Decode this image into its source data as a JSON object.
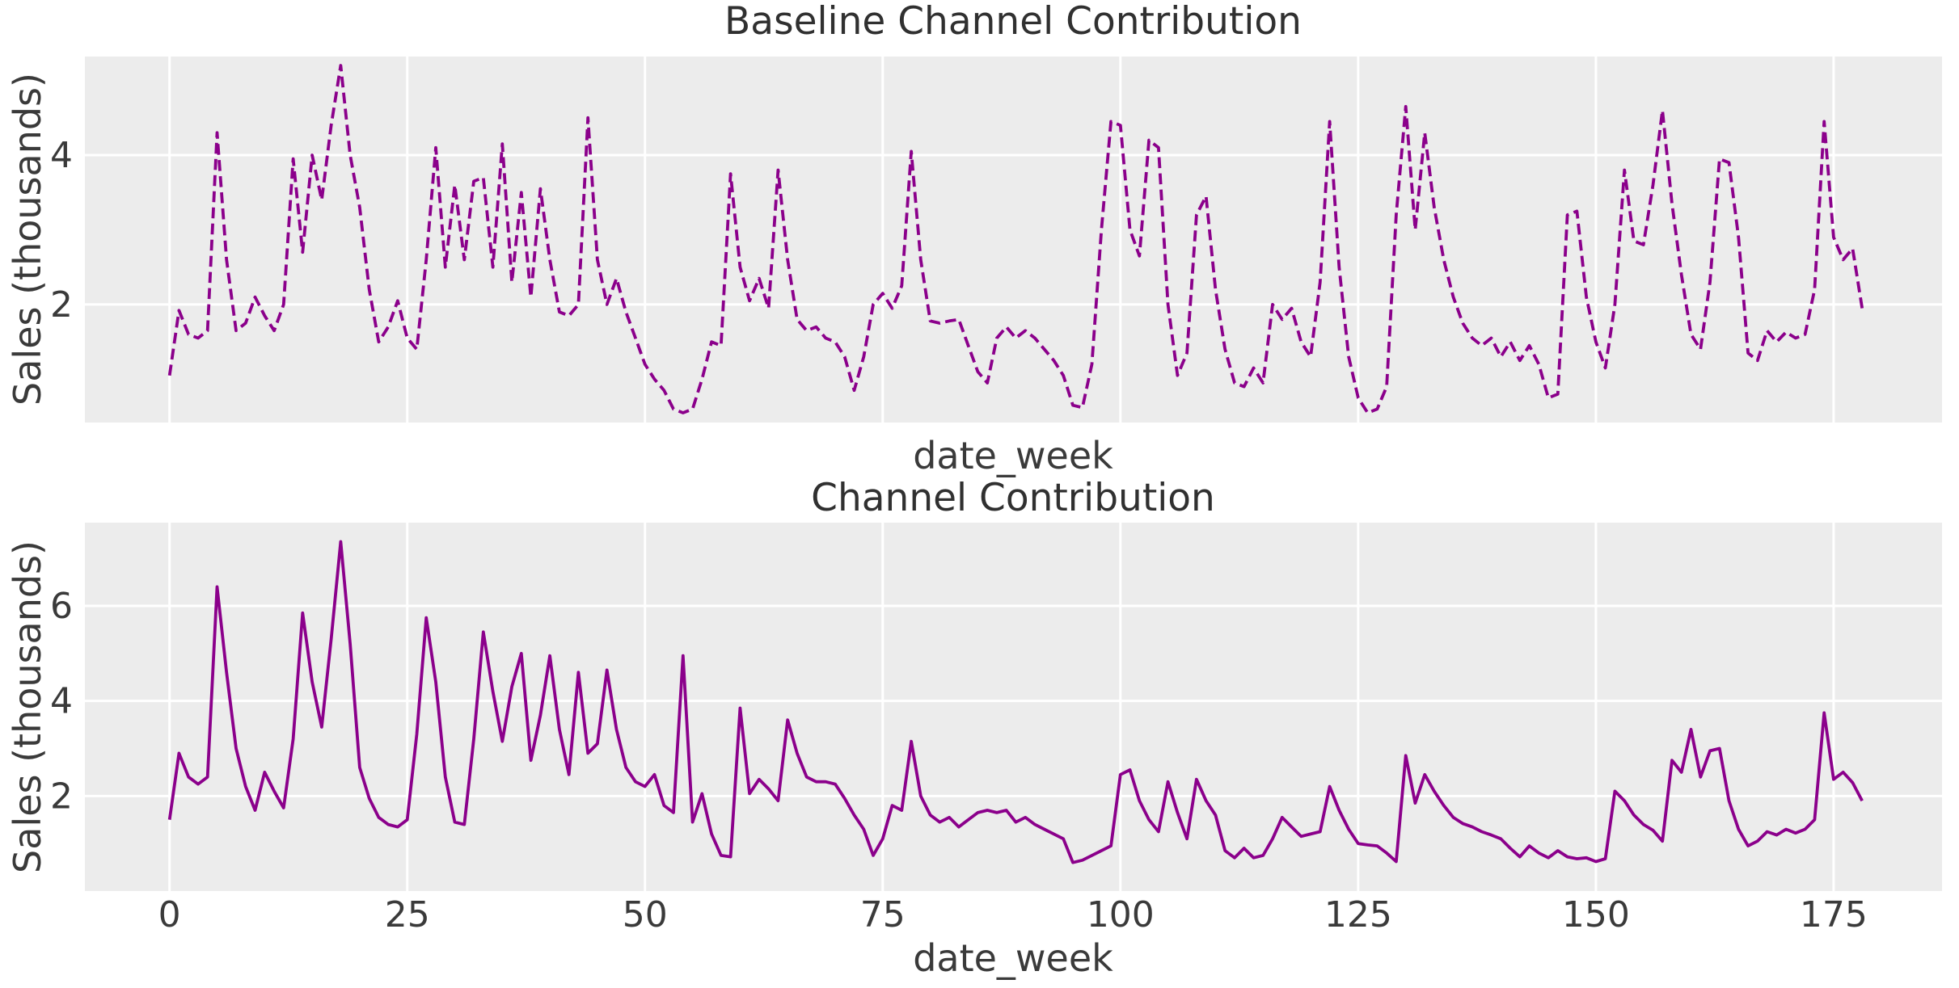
{
  "colors": {
    "line": "#8b008b",
    "plot_background": "#ececec",
    "grid": "#ffffff",
    "text": "#3a3a3a",
    "figure_background": "#ffffff"
  },
  "chart_data": [
    {
      "type": "line",
      "title": "Baseline Channel Contribution",
      "xlabel": "date_week",
      "ylabel": "Sales (thousands)",
      "line_style": "dashed",
      "line_color": "#8b008b",
      "grid": true,
      "legend_position": "none",
      "x_start_week": 0,
      "x_step": 1,
      "xlim": [
        -8.9,
        186.4
      ],
      "ylim": [
        0.42,
        5.32
      ],
      "yticks": [
        2,
        4
      ],
      "xticks": [
        0,
        25,
        50,
        75,
        100,
        125,
        150,
        175
      ],
      "show_xtick_labels": false,
      "values": [
        1.05,
        1.92,
        1.6,
        1.55,
        1.65,
        4.3,
        2.6,
        1.65,
        1.75,
        2.1,
        1.85,
        1.65,
        2.0,
        3.95,
        2.7,
        4.0,
        3.4,
        4.4,
        5.2,
        4.0,
        3.3,
        2.2,
        1.5,
        1.7,
        2.05,
        1.55,
        1.4,
        2.6,
        4.1,
        2.5,
        3.6,
        2.6,
        3.65,
        3.7,
        2.5,
        4.15,
        2.3,
        3.5,
        2.1,
        3.55,
        2.6,
        1.9,
        1.85,
        2.0,
        4.5,
        2.6,
        2.0,
        2.35,
        1.9,
        1.55,
        1.2,
        1.0,
        0.85,
        0.6,
        0.55,
        0.6,
        1.0,
        1.5,
        1.45,
        3.75,
        2.5,
        2.05,
        2.35,
        1.95,
        3.8,
        2.6,
        1.8,
        1.65,
        1.7,
        1.55,
        1.5,
        1.3,
        0.85,
        1.3,
        2.0,
        2.15,
        1.95,
        2.25,
        4.05,
        2.6,
        1.78,
        1.75,
        1.78,
        1.8,
        1.45,
        1.1,
        0.95,
        1.55,
        1.7,
        1.55,
        1.65,
        1.55,
        1.4,
        1.25,
        1.05,
        0.65,
        0.62,
        1.2,
        3.0,
        4.45,
        4.4,
        3.0,
        2.65,
        4.2,
        4.1,
        2.0,
        1.05,
        1.35,
        3.2,
        3.45,
        2.2,
        1.4,
        0.95,
        0.9,
        1.15,
        0.95,
        2.0,
        1.8,
        1.95,
        1.5,
        1.3,
        2.3,
        4.45,
        2.5,
        1.3,
        0.75,
        0.55,
        0.6,
        0.9,
        3.2,
        4.65,
        3.0,
        4.3,
        3.3,
        2.6,
        2.1,
        1.75,
        1.55,
        1.45,
        1.55,
        1.3,
        1.5,
        1.25,
        1.45,
        1.2,
        0.75,
        0.8,
        3.2,
        3.25,
        2.1,
        1.5,
        1.15,
        2.0,
        3.8,
        2.85,
        2.8,
        3.6,
        4.6,
        3.35,
        2.4,
        1.6,
        1.4,
        2.3,
        3.95,
        3.9,
        2.9,
        1.35,
        1.25,
        1.65,
        1.5,
        1.63,
        1.55,
        1.6,
        2.2,
        4.45,
        2.9,
        2.6,
        2.75,
        1.95
      ]
    },
    {
      "type": "line",
      "title": "Channel Contribution",
      "xlabel": "date_week",
      "ylabel": "Sales (thousands)",
      "line_style": "solid",
      "line_color": "#8b008b",
      "grid": true,
      "legend_position": "none",
      "x_start_week": 0,
      "x_step": 1,
      "xlim": [
        -8.9,
        186.4
      ],
      "ylim": [
        0,
        7.75
      ],
      "yticks": [
        2,
        4,
        6
      ],
      "xticks": [
        0,
        25,
        50,
        75,
        100,
        125,
        150,
        175
      ],
      "show_xtick_labels": true,
      "values": [
        1.5,
        2.9,
        2.4,
        2.25,
        2.4,
        6.4,
        4.6,
        3.0,
        2.2,
        1.7,
        2.5,
        2.1,
        1.75,
        3.2,
        5.85,
        4.4,
        3.45,
        5.3,
        7.35,
        5.2,
        2.6,
        1.95,
        1.55,
        1.4,
        1.35,
        1.5,
        3.3,
        5.75,
        4.4,
        2.4,
        1.45,
        1.4,
        3.2,
        5.45,
        4.2,
        3.15,
        4.3,
        5.0,
        2.75,
        3.7,
        4.95,
        3.4,
        2.45,
        4.6,
        2.9,
        3.1,
        4.65,
        3.4,
        2.6,
        2.3,
        2.2,
        2.45,
        1.8,
        1.65,
        4.95,
        1.45,
        2.05,
        1.2,
        0.75,
        0.72,
        3.85,
        2.05,
        2.35,
        2.15,
        1.9,
        3.6,
        2.9,
        2.4,
        2.3,
        2.3,
        2.25,
        1.95,
        1.6,
        1.3,
        0.75,
        1.1,
        1.8,
        1.7,
        3.15,
        2.0,
        1.6,
        1.45,
        1.55,
        1.35,
        1.5,
        1.65,
        1.7,
        1.65,
        1.7,
        1.45,
        1.55,
        1.4,
        1.3,
        1.2,
        1.1,
        0.6,
        0.65,
        0.75,
        0.85,
        0.95,
        2.45,
        2.55,
        1.9,
        1.5,
        1.25,
        2.3,
        1.65,
        1.1,
        2.35,
        1.9,
        1.6,
        0.85,
        0.7,
        0.9,
        0.7,
        0.75,
        1.1,
        1.55,
        1.35,
        1.15,
        1.2,
        1.25,
        2.2,
        1.7,
        1.3,
        1.0,
        0.97,
        0.95,
        0.8,
        0.62,
        2.85,
        1.85,
        2.45,
        2.1,
        1.8,
        1.55,
        1.42,
        1.35,
        1.25,
        1.18,
        1.1,
        0.9,
        0.72,
        0.95,
        0.8,
        0.7,
        0.85,
        0.72,
        0.68,
        0.7,
        0.62,
        0.68,
        2.1,
        1.9,
        1.6,
        1.4,
        1.28,
        1.05,
        2.75,
        2.5,
        3.4,
        2.4,
        2.95,
        3.0,
        1.9,
        1.3,
        0.95,
        1.05,
        1.25,
        1.18,
        1.3,
        1.22,
        1.3,
        1.5,
        3.75,
        2.35,
        2.5,
        2.28,
        1.9
      ]
    }
  ]
}
